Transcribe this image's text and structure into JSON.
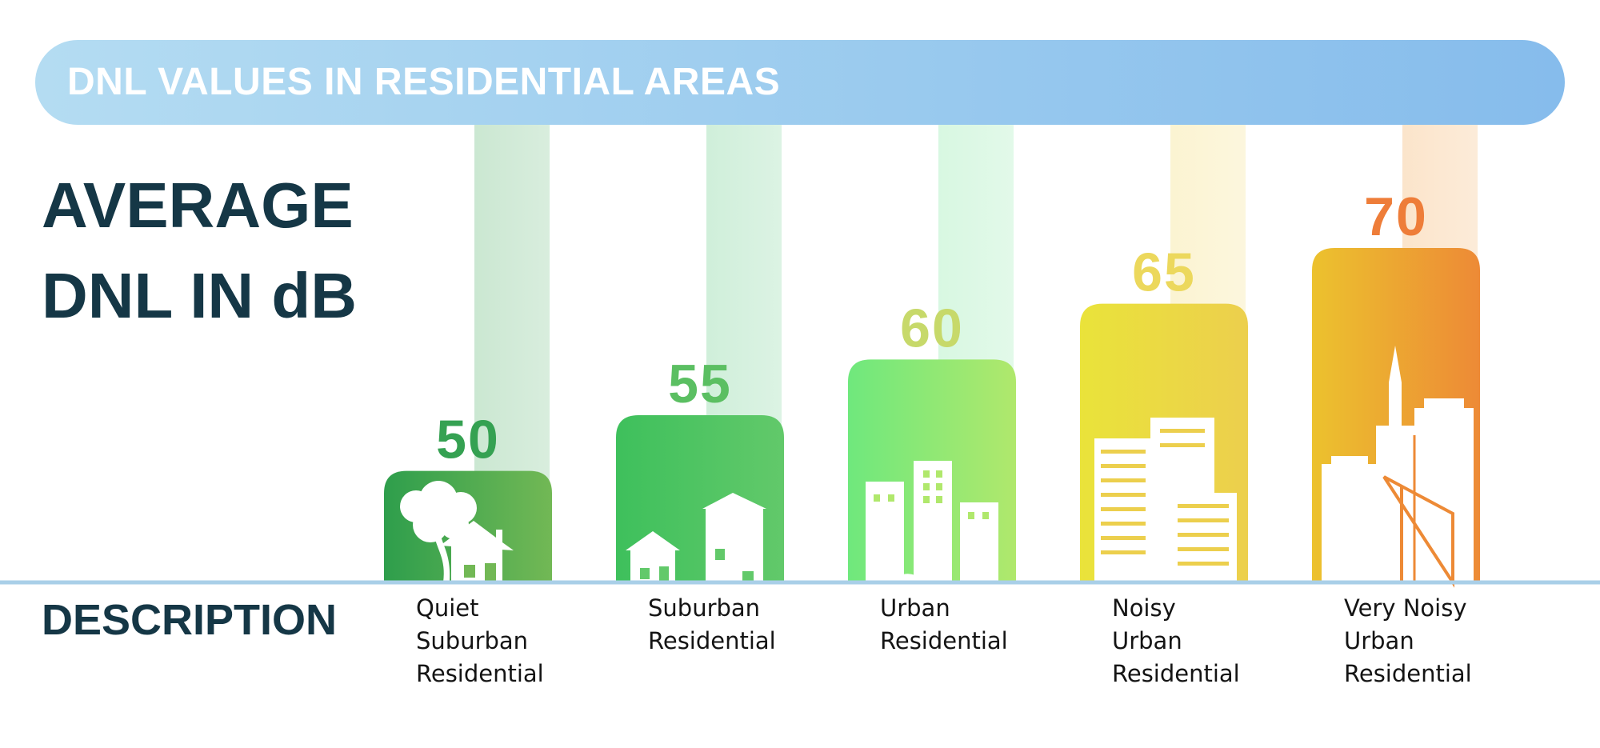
{
  "title": "DNL VALUES IN RESIDENTIAL AREAS",
  "heading_left": [
    "AVERAGE",
    "DNL IN dB"
  ],
  "description_heading": "DESCRIPTION",
  "chart_data": {
    "type": "bar",
    "categories": [
      "Quiet Suburban Residential",
      "Suburban Residential",
      "Urban Residential",
      "Noisy Urban Residential",
      "Very Noisy Urban Residential"
    ],
    "category_lines": [
      [
        "Quiet",
        "Suburban",
        "Residential"
      ],
      [
        "Suburban",
        "Residential"
      ],
      [
        "Urban",
        "Residential"
      ],
      [
        "Noisy",
        "Urban",
        "Residential"
      ],
      [
        "Very Noisy",
        "Urban",
        "Residential"
      ]
    ],
    "values": [
      50,
      55,
      60,
      65,
      70
    ],
    "ylabel": "AVERAGE DNL IN dB",
    "xlabel": "DESCRIPTION",
    "icons": [
      "tree-and-house-icon",
      "two-houses-icon",
      "city-buildings-icon",
      "office-buildings-icon",
      "skyscrapers-icon"
    ],
    "colors": [
      {
        "bar_from": "#2e9e4c",
        "bar_to": "#72b855",
        "value": "#35a152",
        "glow": "#c8e6cf"
      },
      {
        "bar_from": "#3ec05c",
        "bar_to": "#62c96a",
        "value": "#5bbf62",
        "glow": "#cdeed8"
      },
      {
        "bar_from": "#6fe87d",
        "bar_to": "#b0e86c",
        "value": "#c7d96a",
        "glow": "#d6f7e0"
      },
      {
        "bar_from": "#eae33a",
        "bar_to": "#eccf4d",
        "value": "#ecd85c",
        "glow": "#fbf3cf"
      },
      {
        "bar_from": "#ecc22e",
        "bar_to": "#ed8a36",
        "value": "#ee7d39",
        "glow": "#fbe3c8"
      }
    ],
    "baseline_color": "#a9cfe8"
  }
}
